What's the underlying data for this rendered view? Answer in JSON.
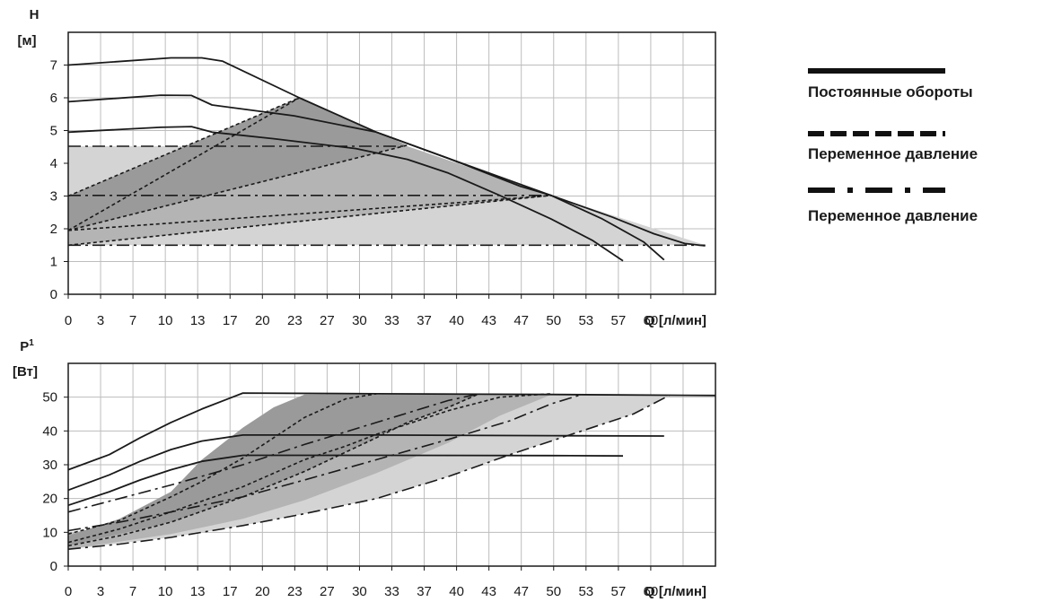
{
  "colors": {
    "grid": "#bdbdbd",
    "light": "#d4d4d4",
    "mid": "#b4b4b4",
    "dark": "#9a9a9a",
    "line": "#1a1a1a"
  },
  "legend": {
    "solid_label": "Постоянные обороты",
    "dashed_label": "Переменное давление",
    "dashdot_label": "Переменное давление"
  },
  "chart_data": [
    {
      "type": "line",
      "ylabel_top": "H",
      "ylabel_unit": "[м]",
      "xlabel": "Q [л/мин]",
      "x_ticks": [
        "0",
        "3",
        "7",
        "10",
        "13",
        "17",
        "20",
        "23",
        "27",
        "30",
        "33",
        "37",
        "40",
        "43",
        "47",
        "50",
        "53",
        "57",
        "60"
      ],
      "xlim": [
        0,
        63
      ],
      "ylim": [
        0,
        8
      ],
      "y_ticks": [
        "0",
        "1",
        "2",
        "3",
        "4",
        "5",
        "6",
        "7"
      ],
      "grid": true,
      "regions": [
        {
          "shade": "light",
          "points": [
            [
              0,
              1.5
            ],
            [
              62,
              1.5
            ],
            [
              47,
              3.02
            ],
            [
              33,
              4.52
            ],
            [
              0,
              4.52
            ]
          ]
        },
        {
          "shade": "mid",
          "points": [
            [
              0,
              1.5
            ],
            [
              47,
              3.02
            ],
            [
              33,
              4.52
            ],
            [
              22.5,
              6.0
            ],
            [
              0,
              3.0
            ]
          ]
        },
        {
          "shade": "dark",
          "points": [
            [
              0,
              1.95
            ],
            [
              33,
              4.55
            ],
            [
              22.5,
              6.0
            ],
            [
              0,
              3.0
            ]
          ]
        }
      ],
      "series": [
        {
          "style": "solid",
          "points": [
            [
              0,
              7.0
            ],
            [
              10,
              7.22
            ],
            [
              13,
              7.22
            ],
            [
              15,
              7.12
            ],
            [
              22.5,
              6.0
            ],
            [
              30,
              4.95
            ],
            [
              37,
              4.15
            ],
            [
              47,
              3.02
            ],
            [
              53,
              2.35
            ],
            [
              57,
              1.85
            ],
            [
              60,
              1.55
            ],
            [
              62,
              1.48
            ]
          ]
        },
        {
          "style": "solid",
          "points": [
            [
              0,
              5.88
            ],
            [
              9,
              6.08
            ],
            [
              12,
              6.07
            ],
            [
              14,
              5.78
            ],
            [
              22,
              5.45
            ],
            [
              30,
              4.95
            ],
            [
              37,
              4.15
            ],
            [
              44,
              3.3
            ],
            [
              47,
              3.02
            ],
            [
              52,
              2.3
            ],
            [
              56,
              1.6
            ],
            [
              58,
              1.05
            ]
          ]
        },
        {
          "style": "solid",
          "points": [
            [
              0,
              4.95
            ],
            [
              9,
              5.1
            ],
            [
              12,
              5.12
            ],
            [
              14,
              4.95
            ],
            [
              20,
              4.75
            ],
            [
              28,
              4.45
            ],
            [
              33,
              4.12
            ],
            [
              37,
              3.7
            ],
            [
              42,
              3.02
            ],
            [
              47,
              2.3
            ],
            [
              51,
              1.65
            ],
            [
              54,
              1.02
            ]
          ]
        },
        {
          "style": "dashed",
          "points": [
            [
              0,
              1.95
            ],
            [
              22.5,
              6.0
            ]
          ]
        },
        {
          "style": "dashed",
          "points": [
            [
              0,
              3.0
            ],
            [
              22.5,
              6.0
            ]
          ]
        },
        {
          "style": "dashed",
          "points": [
            [
              0,
              1.95
            ],
            [
              33,
              4.55
            ]
          ]
        },
        {
          "style": "dashed",
          "points": [
            [
              0,
              1.5
            ],
            [
              47,
              3.02
            ]
          ]
        },
        {
          "style": "dashed",
          "points": [
            [
              0,
              1.95
            ],
            [
              38,
              2.8
            ],
            [
              47,
              3.02
            ]
          ]
        },
        {
          "style": "dashdot",
          "points": [
            [
              0,
              4.52
            ],
            [
              33,
              4.52
            ]
          ]
        },
        {
          "style": "dashdot",
          "points": [
            [
              0,
              3.02
            ],
            [
              47,
              3.02
            ]
          ]
        },
        {
          "style": "dashdot",
          "points": [
            [
              0,
              1.5
            ],
            [
              62,
              1.5
            ]
          ]
        }
      ]
    },
    {
      "type": "line",
      "ylabel_top": "P1",
      "ylabel_unit": "[Вт]",
      "xlabel": "Q [л/мин]",
      "x_ticks": [
        "0",
        "3",
        "7",
        "10",
        "13",
        "17",
        "20",
        "23",
        "27",
        "30",
        "33",
        "37",
        "40",
        "43",
        "47",
        "50",
        "53",
        "57",
        "60"
      ],
      "xlim": [
        0,
        63
      ],
      "ylim": [
        0,
        60
      ],
      "y_ticks": [
        "0",
        "10",
        "20",
        "30",
        "40",
        "50"
      ],
      "grid": true,
      "regions": [
        {
          "shade": "light",
          "points": [
            [
              0,
              5
            ],
            [
              10,
              8.5
            ],
            [
              17,
              12
            ],
            [
              23,
              15.5
            ],
            [
              30,
              20
            ],
            [
              37,
              26.5
            ],
            [
              43,
              33
            ],
            [
              50,
              40
            ],
            [
              55,
              45
            ],
            [
              58.5,
              50.5
            ],
            [
              47,
              50.7
            ],
            [
              37,
              44
            ],
            [
              30,
              38
            ],
            [
              23,
              31.5
            ],
            [
              17,
              23.5
            ],
            [
              10,
              14
            ],
            [
              5,
              9.5
            ],
            [
              0,
              7
            ]
          ]
        },
        {
          "shade": "mid",
          "points": [
            [
              0,
              5
            ],
            [
              10,
              9.5
            ],
            [
              17,
              14
            ],
            [
              23,
              19.5
            ],
            [
              30,
              27.5
            ],
            [
              37,
              36.5
            ],
            [
              42,
              44.5
            ],
            [
              47,
              50.7
            ],
            [
              33,
              50.8
            ],
            [
              27,
              45
            ],
            [
              23,
              40
            ],
            [
              17,
              32
            ],
            [
              10,
              20.5
            ],
            [
              5,
              13
            ],
            [
              0,
              9.5
            ]
          ]
        },
        {
          "shade": "dark",
          "points": [
            [
              0,
              6
            ],
            [
              10,
              13
            ],
            [
              17,
              20.5
            ],
            [
              23,
              28
            ],
            [
              30,
              38
            ],
            [
              33,
              42.5
            ],
            [
              37,
              47
            ],
            [
              40,
              50.8
            ],
            [
              23,
              50.8
            ],
            [
              20,
              47
            ],
            [
              17,
              41
            ],
            [
              13,
              31.5
            ],
            [
              10,
              22
            ],
            [
              5,
              14
            ],
            [
              0,
              9
            ]
          ]
        }
      ],
      "series": [
        {
          "style": "solid",
          "points": [
            [
              0,
              28.5
            ],
            [
              4,
              33
            ],
            [
              7,
              38
            ],
            [
              10,
              42.5
            ],
            [
              13,
              46.5
            ],
            [
              17,
              51.2
            ],
            [
              30,
              51
            ],
            [
              47,
              50.8
            ],
            [
              63,
              50.5
            ]
          ]
        },
        {
          "style": "solid",
          "points": [
            [
              0,
              22.5
            ],
            [
              4,
              27
            ],
            [
              7,
              31
            ],
            [
              10,
              34.5
            ],
            [
              13,
              37
            ],
            [
              17,
              38.8
            ],
            [
              30,
              38.8
            ],
            [
              47,
              38.6
            ],
            [
              58,
              38.5
            ]
          ]
        },
        {
          "style": "solid",
          "points": [
            [
              0,
              18
            ],
            [
              4,
              22
            ],
            [
              7,
              25.5
            ],
            [
              10,
              28.5
            ],
            [
              13,
              31
            ],
            [
              17,
              32.8
            ],
            [
              30,
              32.8
            ],
            [
              47,
              32.7
            ],
            [
              54,
              32.6
            ]
          ]
        },
        {
          "style": "dashed",
          "points": [
            [
              0,
              9.5
            ],
            [
              5,
              13.5
            ],
            [
              10,
              20.5
            ],
            [
              13,
              25
            ],
            [
              17,
              32
            ],
            [
              20,
              38
            ],
            [
              23,
              44
            ],
            [
              27,
              49.5
            ],
            [
              30,
              51
            ]
          ]
        },
        {
          "style": "dashed",
          "points": [
            [
              0,
              7
            ],
            [
              5,
              11
            ],
            [
              10,
              16
            ],
            [
              17,
              23.5
            ],
            [
              23,
              31.5
            ],
            [
              27,
              35.5
            ],
            [
              30,
              39
            ],
            [
              33,
              42
            ],
            [
              37,
              46
            ],
            [
              42,
              50
            ],
            [
              47,
              51
            ]
          ]
        },
        {
          "style": "dashed",
          "points": [
            [
              0,
              6
            ],
            [
              5,
              9
            ],
            [
              10,
              13
            ],
            [
              17,
              20.5
            ],
            [
              23,
              28
            ],
            [
              30,
              38
            ],
            [
              33,
              42.5
            ],
            [
              37,
              47
            ],
            [
              40,
              51
            ]
          ]
        },
        {
          "style": "dashdot",
          "points": [
            [
              0,
              16
            ],
            [
              5,
              20
            ],
            [
              10,
              24
            ],
            [
              17,
              30
            ],
            [
              23,
              36
            ],
            [
              30,
              42.5
            ],
            [
              37,
              49
            ],
            [
              40,
              51
            ]
          ]
        },
        {
          "style": "dashdot",
          "points": [
            [
              0,
              10.5
            ],
            [
              5,
              13
            ],
            [
              10,
              16
            ],
            [
              17,
              20.5
            ],
            [
              23,
              25.5
            ],
            [
              30,
              31.5
            ],
            [
              37,
              37.5
            ],
            [
              43,
              43
            ],
            [
              47,
              48
            ],
            [
              50,
              50.8
            ]
          ]
        },
        {
          "style": "dashdot",
          "points": [
            [
              0,
              5
            ],
            [
              5,
              6.5
            ],
            [
              10,
              8.5
            ],
            [
              17,
              12
            ],
            [
              23,
              15.5
            ],
            [
              30,
              20
            ],
            [
              37,
              26.5
            ],
            [
              43,
              33
            ],
            [
              50,
              40
            ],
            [
              55,
              45
            ],
            [
              58.5,
              50.5
            ]
          ]
        }
      ]
    }
  ]
}
